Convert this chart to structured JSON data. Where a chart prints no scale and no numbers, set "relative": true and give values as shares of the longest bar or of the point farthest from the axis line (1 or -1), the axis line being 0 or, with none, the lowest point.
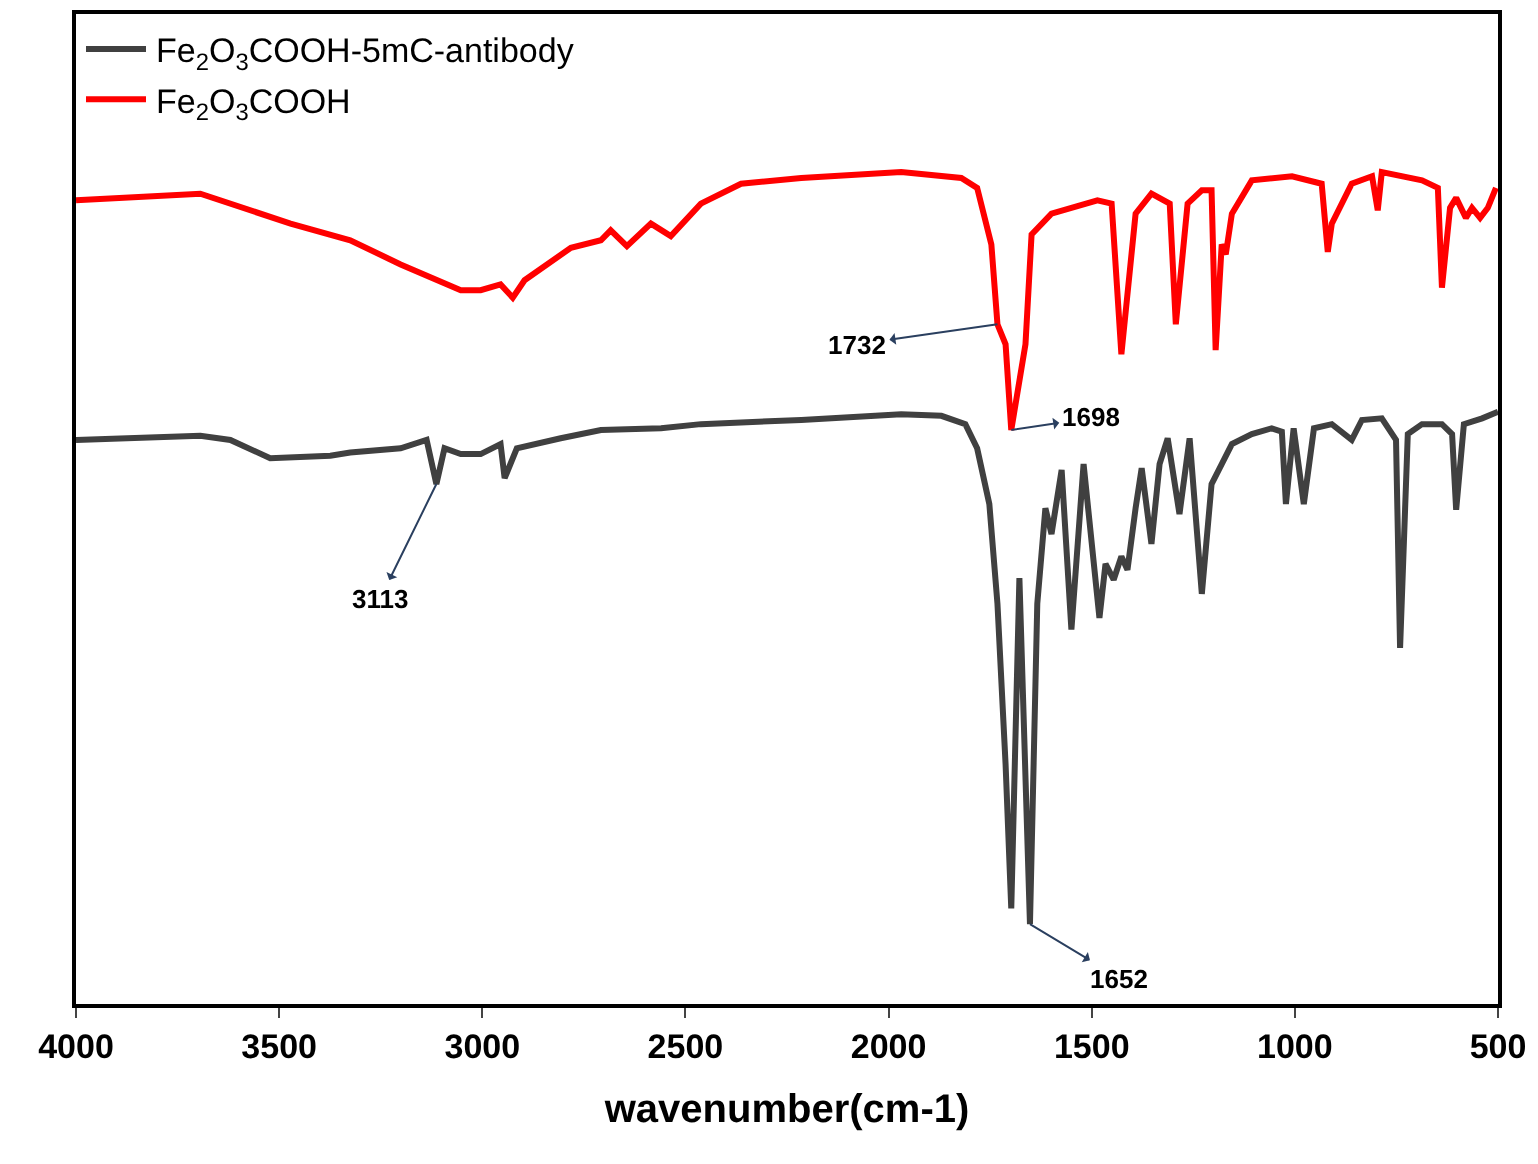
{
  "chart_data": {
    "type": "line",
    "relative": true,
    "xlabel": "wavenumber(cm-1)",
    "xlim": [
      4000,
      500
    ],
    "xticks": [
      4000,
      3500,
      3000,
      2500,
      2000,
      1500,
      1000,
      500
    ],
    "legend": "top left",
    "marker": "none",
    "line_style": "solid",
    "series": [
      {
        "name": "Fe$_{2}$O$_{3}$COOH-5mC-antibody",
        "color": "#404040",
        "x": [
          4000,
          3694,
          3620,
          3522,
          3374,
          3325,
          3201,
          3137,
          3113,
          3093,
          3053,
          3004,
          2955,
          2945,
          2915,
          2807,
          2708,
          2560,
          2462,
          2215,
          1969,
          1870,
          1811,
          1782,
          1752,
          1732,
          1712,
          1698,
          1678,
          1652,
          1634,
          1614,
          1599,
          1574,
          1550,
          1520,
          1481,
          1466,
          1446,
          1427,
          1412,
          1392,
          1377,
          1353,
          1333,
          1313,
          1284,
          1259,
          1229,
          1205,
          1180,
          1155,
          1106,
          1057,
          1032,
          1022,
          1003,
          978,
          953,
          909,
          860,
          835,
          786,
          751,
          741,
          722,
          687,
          638,
          613,
          603,
          584,
          539,
          500
        ],
        "values": [
          0.678,
          0.683,
          0.678,
          0.656,
          0.659,
          0.663,
          0.668,
          0.678,
          0.625,
          0.668,
          0.661,
          0.661,
          0.673,
          0.632,
          0.668,
          0.68,
          0.69,
          0.692,
          0.697,
          0.702,
          0.709,
          0.707,
          0.697,
          0.668,
          0.601,
          0.481,
          0.288,
          0.115,
          0.512,
          0.096,
          0.481,
          0.596,
          0.565,
          0.642,
          0.45,
          0.649,
          0.464,
          0.529,
          0.51,
          0.538,
          0.522,
          0.596,
          0.644,
          0.553,
          0.649,
          0.68,
          0.589,
          0.68,
          0.493,
          0.625,
          0.649,
          0.673,
          0.685,
          0.692,
          0.688,
          0.601,
          0.692,
          0.601,
          0.692,
          0.697,
          0.678,
          0.702,
          0.704,
          0.678,
          0.428,
          0.685,
          0.697,
          0.697,
          0.685,
          0.594,
          0.697,
          0.704,
          0.712
        ]
      },
      {
        "name": "Fe$_{2}$O$_{3}$COOH",
        "color": "#ff0000",
        "x": [
          4000,
          3694,
          3472,
          3325,
          3201,
          3053,
          3004,
          2955,
          2925,
          2896,
          2782,
          2708,
          2684,
          2644,
          2585,
          2536,
          2462,
          2363,
          2215,
          1969,
          1821,
          1782,
          1747,
          1732,
          1712,
          1698,
          1663,
          1648,
          1599,
          1486,
          1451,
          1427,
          1392,
          1353,
          1308,
          1293,
          1264,
          1229,
          1205,
          1195,
          1180,
          1170,
          1155,
          1106,
          1007,
          934,
          919,
          909,
          860,
          810,
          796,
          786,
          687,
          648,
          638,
          618,
          603,
          579,
          564,
          544,
          525,
          505
        ],
        "values": [
          0.966,
          0.974,
          0.938,
          0.918,
          0.889,
          0.858,
          0.858,
          0.865,
          0.849,
          0.87,
          0.909,
          0.918,
          0.93,
          0.911,
          0.938,
          0.923,
          0.962,
          0.986,
          0.993,
          1,
          0.993,
          0.981,
          0.913,
          0.817,
          0.793,
          0.69,
          0.793,
          0.925,
          0.95,
          0.966,
          0.962,
          0.781,
          0.95,
          0.974,
          0.962,
          0.817,
          0.962,
          0.978,
          0.978,
          0.786,
          0.913,
          0.901,
          0.95,
          0.99,
          0.995,
          0.986,
          0.904,
          0.938,
          0.986,
          0.995,
          0.954,
          1,
          0.99,
          0.981,
          0.861,
          0.957,
          0.969,
          0.945,
          0.957,
          0.945,
          0.957,
          0.981
        ]
      }
    ],
    "annotations": [
      {
        "text": "3113",
        "x": 3113,
        "y": 0.625
      },
      {
        "text": "1732",
        "x": 1732,
        "y": 0.817
      },
      {
        "text": "1698",
        "x": 1698,
        "y": 0.69
      },
      {
        "text": "1652",
        "x": 1652,
        "y": 0.096
      }
    ]
  }
}
